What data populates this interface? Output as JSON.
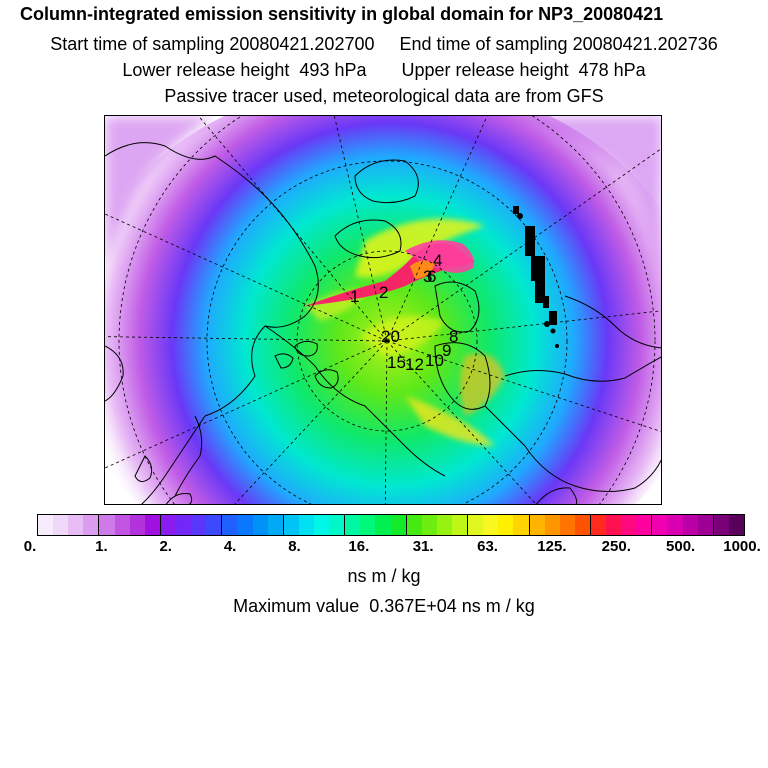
{
  "header": {
    "title": "Column-integrated emission sensitivity in global domain for NP3_20080421",
    "line1": "Start time of sampling 20080421.202700     End time of sampling 20080421.202736",
    "line2": "Lower release height  493 hPa       Upper release height  478 hPa",
    "line3": "Passive tracer used, meteorological data are from GFS"
  },
  "map": {
    "projection": "polar stereographic, north pole",
    "release_labels": [
      "1",
      "2",
      "3",
      "4",
      "6",
      "20",
      "8",
      "9",
      "10",
      "12",
      "15"
    ]
  },
  "colorbar": {
    "colors": [
      "#f7ecfb",
      "#f0d8f8",
      "#e8bcf4",
      "#dc9cf0",
      "#cf7ae9",
      "#c155e2",
      "#b232dc",
      "#a010e0",
      "#8a1cf0",
      "#7428f8",
      "#5a37fb",
      "#3d49fd",
      "#2060ff",
      "#0a78fe",
      "#0092f6",
      "#00aaf5",
      "#00c4f6",
      "#00e0f0",
      "#00f6e6",
      "#00f8c8",
      "#00f8a2",
      "#00f87a",
      "#00f050",
      "#12ea2a",
      "#44ea12",
      "#6eee10",
      "#96f210",
      "#bef618",
      "#e0f820",
      "#f8f820",
      "#fff000",
      "#ffd400",
      "#ffb400",
      "#ff9600",
      "#ff7400",
      "#ff5200",
      "#ff2a1e",
      "#ff1050",
      "#ff0880",
      "#ff00a0",
      "#f000b0",
      "#d800b0",
      "#bc00a8",
      "#9e0096",
      "#7a0078",
      "#58005a"
    ],
    "tick_labels": [
      "0.",
      "1.",
      "2.",
      "4.",
      "8.",
      "16.",
      "31.",
      "63.",
      "125.",
      "250.",
      "500.",
      "1000."
    ],
    "units": "ns m / kg"
  },
  "maximum": "Maximum value  0.367E+04 ns m / kg"
}
